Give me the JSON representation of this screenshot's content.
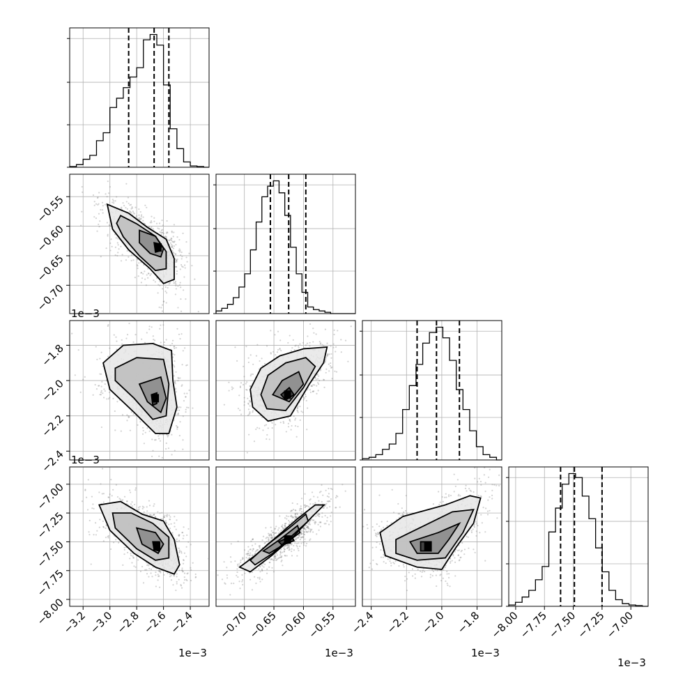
{
  "chart_data": {
    "type": "corner",
    "parameters": [
      {
        "range": [
          -3.3,
          -2.26
        ],
        "ticks": [
          -3.2,
          -3.0,
          -2.8,
          -2.6,
          -2.4
        ],
        "tick_labels": [
          "−3.2",
          "−3.0",
          "−2.8",
          "−2.6",
          "−2.4"
        ],
        "offset": "1e−3"
      },
      {
        "range": [
          -0.748,
          -0.512
        ],
        "ticks": [
          -0.7,
          -0.65,
          -0.6,
          -0.55
        ],
        "tick_labels": [
          "−0.70",
          "−0.65",
          "−0.60",
          "−0.55"
        ],
        "offset": "1e−3"
      },
      {
        "range": [
          -2.45,
          -1.66
        ],
        "ticks": [
          -2.4,
          -2.2,
          -2.0,
          -1.8
        ],
        "tick_labels": [
          "−2.4",
          "−2.2",
          "−2.0",
          "−1.8"
        ],
        "offset": "1e−3"
      },
      {
        "range": [
          -8.06,
          -6.85
        ],
        "ticks": [
          -8.0,
          -7.75,
          -7.5,
          -7.25,
          -7.0
        ],
        "tick_labels": [
          "−8.00",
          "−7.75",
          "−7.50",
          "−7.25",
          "−7.00"
        ],
        "offset": "1e−3"
      }
    ],
    "histograms": [
      {
        "bins": [
          -3.3,
          -3.25,
          -3.2,
          -3.15,
          -3.1,
          -3.05,
          -3.0,
          -2.95,
          -2.9,
          -2.85,
          -2.8,
          -2.75,
          -2.7,
          -2.65,
          -2.6,
          -2.55,
          -2.5,
          -2.45,
          -2.4,
          -2.35,
          -2.3,
          -2.26
        ],
        "values": [
          0.005,
          0.02,
          0.06,
          0.09,
          0.2,
          0.26,
          0.45,
          0.52,
          0.6,
          0.68,
          0.75,
          0.96,
          1.0,
          0.92,
          0.62,
          0.29,
          0.14,
          0.04,
          0.01,
          0.005,
          0.0
        ],
        "quantiles": [
          -2.86,
          -2.67,
          -2.56
        ]
      },
      {
        "bins": [
          -0.748,
          -0.7383,
          -0.7286,
          -0.7189,
          -0.7092,
          -0.6995,
          -0.6898,
          -0.6801,
          -0.6704,
          -0.6607,
          -0.651,
          -0.6413,
          -0.6316,
          -0.6219,
          -0.6122,
          -0.6025,
          -0.5928,
          -0.5831,
          -0.5734,
          -0.5637,
          -0.554,
          -0.512
        ],
        "values": [
          0.02,
          0.04,
          0.07,
          0.12,
          0.2,
          0.3,
          0.48,
          0.69,
          0.88,
          0.96,
          1.0,
          0.91,
          0.74,
          0.5,
          0.3,
          0.16,
          0.05,
          0.03,
          0.02,
          0.01,
          0.0
        ],
        "quantiles": [
          -0.656,
          -0.625,
          -0.596
        ]
      },
      {
        "bins": [
          -2.45,
          -2.412,
          -2.374,
          -2.336,
          -2.298,
          -2.26,
          -2.222,
          -2.184,
          -2.146,
          -2.108,
          -2.07,
          -2.032,
          -1.994,
          -1.956,
          -1.918,
          -1.88,
          -1.842,
          -1.804,
          -1.766,
          -1.728,
          -1.69,
          -1.66
        ],
        "values": [
          0.01,
          0.02,
          0.04,
          0.08,
          0.12,
          0.2,
          0.38,
          0.56,
          0.72,
          0.88,
          0.96,
          1.0,
          0.92,
          0.75,
          0.53,
          0.38,
          0.22,
          0.1,
          0.04,
          0.02,
          0.0
        ],
        "quantiles": [
          -2.14,
          -2.03,
          -1.9
        ]
      },
      {
        "bins": [
          -8.06,
          -8.002,
          -7.944,
          -7.886,
          -7.828,
          -7.77,
          -7.712,
          -7.654,
          -7.596,
          -7.538,
          -7.48,
          -7.422,
          -7.364,
          -7.306,
          -7.248,
          -7.19,
          -7.132,
          -7.074,
          -7.016,
          -6.958,
          -6.9,
          -6.85
        ],
        "values": [
          0.01,
          0.03,
          0.07,
          0.12,
          0.2,
          0.3,
          0.56,
          0.74,
          0.92,
          1.0,
          0.97,
          0.83,
          0.66,
          0.44,
          0.26,
          0.12,
          0.05,
          0.02,
          0.01,
          0.005,
          0.0
        ],
        "quantiles": [
          -7.61,
          -7.49,
          -7.25
        ]
      }
    ],
    "contours": [
      {
        "x": 0,
        "y": 1,
        "center": [
          -2.64,
          -0.636
        ],
        "levels": [
          [
            [
              -3.02,
              -0.563
            ],
            [
              -2.86,
              -0.578
            ],
            [
              -2.72,
              -0.602
            ],
            [
              -2.58,
              -0.622
            ],
            [
              -2.52,
              -0.655
            ],
            [
              -2.52,
              -0.69
            ],
            [
              -2.6,
              -0.697
            ],
            [
              -2.7,
              -0.672
            ],
            [
              -2.86,
              -0.64
            ],
            [
              -2.98,
              -0.605
            ]
          ],
          [
            [
              -2.92,
              -0.582
            ],
            [
              -2.8,
              -0.596
            ],
            [
              -2.66,
              -0.617
            ],
            [
              -2.58,
              -0.643
            ],
            [
              -2.58,
              -0.672
            ],
            [
              -2.66,
              -0.675
            ],
            [
              -2.78,
              -0.65
            ],
            [
              -2.9,
              -0.618
            ],
            [
              -2.95,
              -0.595
            ]
          ],
          [
            [
              -2.78,
              -0.607
            ],
            [
              -2.66,
              -0.617
            ],
            [
              -2.6,
              -0.638
            ],
            [
              -2.62,
              -0.652
            ],
            [
              -2.7,
              -0.646
            ],
            [
              -2.78,
              -0.628
            ]
          ],
          [
            [
              -2.67,
              -0.628
            ],
            [
              -2.63,
              -0.63
            ],
            [
              -2.63,
              -0.642
            ],
            [
              -2.66,
              -0.644
            ]
          ]
        ]
      },
      {
        "x": 0,
        "y": 2,
        "center": [
          -2.66,
          -2.1
        ],
        "levels": [
          [
            [
              -3.05,
              -1.9
            ],
            [
              -2.9,
              -1.8
            ],
            [
              -2.68,
              -1.79
            ],
            [
              -2.54,
              -1.83
            ],
            [
              -2.53,
              -2.0
            ],
            [
              -2.5,
              -2.15
            ],
            [
              -2.56,
              -2.3
            ],
            [
              -2.66,
              -2.3
            ],
            [
              -2.82,
              -2.18
            ],
            [
              -3.0,
              -2.05
            ]
          ],
          [
            [
              -2.96,
              -1.93
            ],
            [
              -2.8,
              -1.87
            ],
            [
              -2.6,
              -1.88
            ],
            [
              -2.56,
              -2.02
            ],
            [
              -2.58,
              -2.2
            ],
            [
              -2.68,
              -2.22
            ],
            [
              -2.82,
              -2.1
            ],
            [
              -2.96,
              -2.0
            ]
          ],
          [
            [
              -2.78,
              -2.02
            ],
            [
              -2.62,
              -1.98
            ],
            [
              -2.58,
              -2.1
            ],
            [
              -2.62,
              -2.18
            ],
            [
              -2.72,
              -2.12
            ]
          ],
          [
            [
              -2.69,
              -2.08
            ],
            [
              -2.65,
              -2.07
            ],
            [
              -2.65,
              -2.13
            ],
            [
              -2.68,
              -2.14
            ]
          ]
        ]
      },
      {
        "x": 1,
        "y": 2,
        "center": [
          -0.627,
          -2.08
        ],
        "levels": [
          [
            [
              -0.69,
              -2.05
            ],
            [
              -0.672,
              -1.93
            ],
            [
              -0.64,
              -1.86
            ],
            [
              -0.6,
              -1.82
            ],
            [
              -0.56,
              -1.81
            ],
            [
              -0.566,
              -1.9
            ],
            [
              -0.59,
              -2.02
            ],
            [
              -0.622,
              -2.2
            ],
            [
              -0.66,
              -2.23
            ],
            [
              -0.686,
              -2.15
            ]
          ],
          [
            [
              -0.672,
              -2.08
            ],
            [
              -0.66,
              -1.97
            ],
            [
              -0.63,
              -1.9
            ],
            [
              -0.596,
              -1.87
            ],
            [
              -0.58,
              -1.92
            ],
            [
              -0.6,
              -2.04
            ],
            [
              -0.63,
              -2.17
            ],
            [
              -0.662,
              -2.16
            ]
          ],
          [
            [
              -0.652,
              -2.08
            ],
            [
              -0.636,
              -2.0
            ],
            [
              -0.608,
              -1.95
            ],
            [
              -0.6,
              -2.02
            ],
            [
              -0.624,
              -2.12
            ]
          ],
          [
            [
              -0.638,
              -2.08
            ],
            [
              -0.624,
              -2.04
            ],
            [
              -0.616,
              -2.08
            ],
            [
              -0.63,
              -2.11
            ]
          ]
        ]
      },
      {
        "x": 0,
        "y": 3,
        "center": [
          -2.65,
          -7.54
        ],
        "levels": [
          [
            [
              -3.08,
              -7.18
            ],
            [
              -2.92,
              -7.15
            ],
            [
              -2.76,
              -7.26
            ],
            [
              -2.6,
              -7.32
            ],
            [
              -2.52,
              -7.48
            ],
            [
              -2.48,
              -7.7
            ],
            [
              -2.52,
              -7.78
            ],
            [
              -2.66,
              -7.72
            ],
            [
              -2.82,
              -7.6
            ],
            [
              -3.0,
              -7.4
            ]
          ],
          [
            [
              -2.98,
              -7.25
            ],
            [
              -2.84,
              -7.25
            ],
            [
              -2.68,
              -7.34
            ],
            [
              -2.56,
              -7.46
            ],
            [
              -2.56,
              -7.64
            ],
            [
              -2.66,
              -7.66
            ],
            [
              -2.8,
              -7.56
            ],
            [
              -2.96,
              -7.38
            ]
          ],
          [
            [
              -2.8,
              -7.38
            ],
            [
              -2.66,
              -7.42
            ],
            [
              -2.6,
              -7.52
            ],
            [
              -2.64,
              -7.6
            ],
            [
              -2.76,
              -7.52
            ]
          ],
          [
            [
              -2.68,
              -7.5
            ],
            [
              -2.63,
              -7.5
            ],
            [
              -2.63,
              -7.58
            ],
            [
              -2.67,
              -7.57
            ]
          ]
        ]
      },
      {
        "x": 1,
        "y": 3,
        "center": [
          -0.627,
          -7.48
        ],
        "levels": [
          [
            [
              -0.708,
              -7.72
            ],
            [
              -0.682,
              -7.62
            ],
            [
              -0.646,
              -7.46
            ],
            [
              -0.61,
              -7.3
            ],
            [
              -0.58,
              -7.18
            ],
            [
              -0.565,
              -7.18
            ],
            [
              -0.585,
              -7.28
            ],
            [
              -0.618,
              -7.46
            ],
            [
              -0.654,
              -7.62
            ],
            [
              -0.69,
              -7.76
            ]
          ],
          [
            [
              -0.69,
              -7.66
            ],
            [
              -0.66,
              -7.52
            ],
            [
              -0.624,
              -7.38
            ],
            [
              -0.596,
              -7.26
            ],
            [
              -0.592,
              -7.32
            ],
            [
              -0.622,
              -7.46
            ],
            [
              -0.652,
              -7.6
            ],
            [
              -0.682,
              -7.7
            ]
          ],
          [
            [
              -0.668,
              -7.58
            ],
            [
              -0.64,
              -7.48
            ],
            [
              -0.61,
              -7.36
            ],
            [
              -0.606,
              -7.42
            ],
            [
              -0.632,
              -7.52
            ],
            [
              -0.658,
              -7.6
            ]
          ],
          [
            [
              -0.642,
              -7.5
            ],
            [
              -0.62,
              -7.45
            ],
            [
              -0.616,
              -7.49
            ],
            [
              -0.636,
              -7.53
            ]
          ]
        ]
      },
      {
        "x": 2,
        "y": 3,
        "center": [
          -2.08,
          -7.54
        ],
        "levels": [
          [
            [
              -2.35,
              -7.42
            ],
            [
              -2.22,
              -7.28
            ],
            [
              -1.98,
              -7.18
            ],
            [
              -1.84,
              -7.1
            ],
            [
              -1.78,
              -7.12
            ],
            [
              -1.82,
              -7.34
            ],
            [
              -1.92,
              -7.55
            ],
            [
              -2.0,
              -7.74
            ],
            [
              -2.14,
              -7.72
            ],
            [
              -2.32,
              -7.62
            ]
          ],
          [
            [
              -2.26,
              -7.48
            ],
            [
              -2.1,
              -7.36
            ],
            [
              -1.94,
              -7.24
            ],
            [
              -1.82,
              -7.22
            ],
            [
              -1.88,
              -7.42
            ],
            [
              -1.98,
              -7.64
            ],
            [
              -2.14,
              -7.66
            ],
            [
              -2.26,
              -7.6
            ]
          ],
          [
            [
              -2.18,
              -7.5
            ],
            [
              -2.02,
              -7.42
            ],
            [
              -1.9,
              -7.34
            ],
            [
              -1.96,
              -7.48
            ],
            [
              -2.02,
              -7.6
            ],
            [
              -2.14,
              -7.6
            ]
          ],
          [
            [
              -2.12,
              -7.5
            ],
            [
              -2.06,
              -7.5
            ],
            [
              -2.06,
              -7.58
            ],
            [
              -2.12,
              -7.58
            ]
          ]
        ]
      }
    ]
  }
}
